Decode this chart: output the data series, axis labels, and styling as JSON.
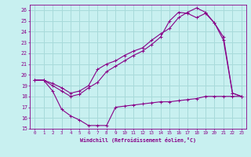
{
  "xlabel": "Windchill (Refroidissement éolien,°C)",
  "bg_color": "#c8f0f0",
  "grid_color": "#a8dada",
  "line_color": "#880088",
  "xlim": [
    -0.5,
    23.5
  ],
  "ylim": [
    15,
    26.5
  ],
  "xticks": [
    0,
    1,
    2,
    3,
    4,
    5,
    6,
    7,
    8,
    9,
    10,
    11,
    12,
    13,
    14,
    15,
    16,
    17,
    18,
    19,
    20,
    21,
    22,
    23
  ],
  "yticks": [
    15,
    16,
    17,
    18,
    19,
    20,
    21,
    22,
    23,
    24,
    25,
    26
  ],
  "curve1_x": [
    0,
    1,
    2,
    3,
    4,
    5,
    6,
    7,
    8,
    9,
    10,
    11,
    12,
    13,
    14,
    15,
    16,
    17,
    18,
    19,
    20,
    21,
    22,
    23
  ],
  "curve1_y": [
    19.5,
    19.5,
    18.5,
    16.8,
    16.2,
    15.8,
    15.3,
    15.3,
    15.3,
    17.0,
    17.1,
    17.2,
    17.3,
    17.4,
    17.5,
    17.5,
    17.6,
    17.7,
    17.8,
    18.0,
    18.0,
    18.0,
    18.0,
    18.0
  ],
  "curve2_x": [
    0,
    1,
    2,
    3,
    4,
    5,
    6,
    7,
    8,
    9,
    10,
    11,
    12,
    13,
    14,
    15,
    16,
    17,
    18,
    19,
    20,
    21,
    22,
    23
  ],
  "curve2_y": [
    19.5,
    19.5,
    19.2,
    18.8,
    18.3,
    18.5,
    19.0,
    20.5,
    21.0,
    21.3,
    21.8,
    22.2,
    22.5,
    23.2,
    23.8,
    24.3,
    25.3,
    25.8,
    26.2,
    25.8,
    24.8,
    23.2,
    18.3,
    18.0
  ],
  "curve3_x": [
    0,
    1,
    2,
    3,
    4,
    5,
    6,
    7,
    8,
    9,
    10,
    11,
    12,
    13,
    14,
    15,
    16,
    17,
    18,
    19,
    20,
    21,
    22,
    23
  ],
  "curve3_y": [
    19.5,
    19.5,
    19.0,
    18.5,
    18.0,
    18.2,
    18.8,
    19.3,
    20.3,
    20.8,
    21.3,
    21.8,
    22.2,
    22.8,
    23.5,
    25.0,
    25.8,
    25.7,
    25.3,
    25.7,
    24.8,
    23.5,
    18.3,
    18.0
  ]
}
